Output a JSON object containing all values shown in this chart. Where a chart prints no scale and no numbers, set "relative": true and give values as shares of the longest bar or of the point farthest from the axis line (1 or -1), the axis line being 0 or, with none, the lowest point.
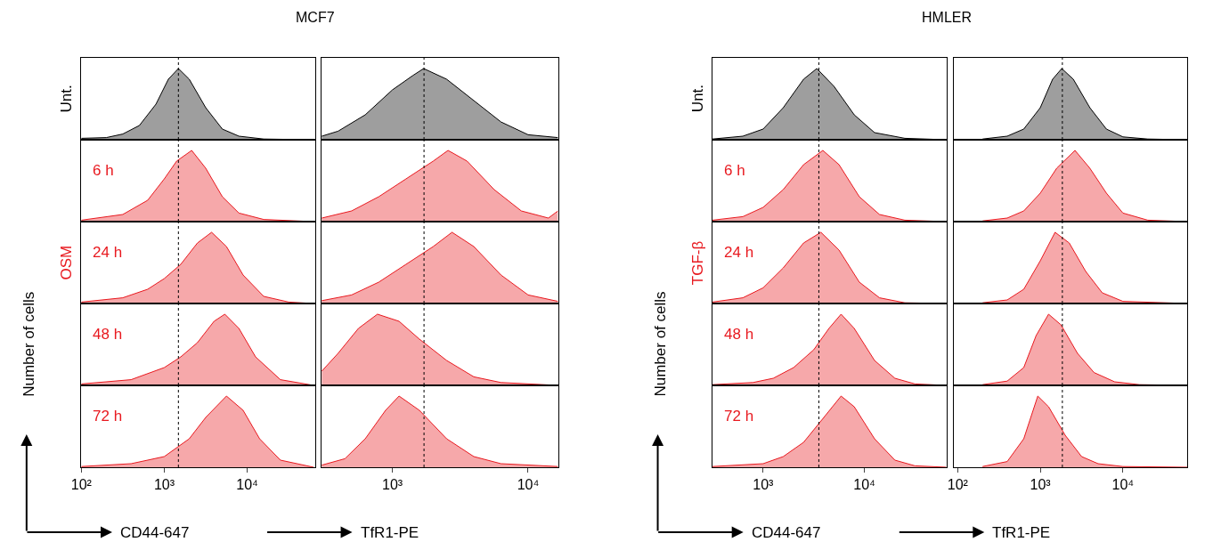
{
  "chart_data": [
    {
      "type": "area",
      "relative": true,
      "log": "x",
      "title": "MCF7",
      "annotations": [
        "Unt."
      ],
      "xlim": [
        100,
        66000
      ],
      "tick_labels": false,
      "ref_lines": [
        {
          "axis": "x",
          "value": 1480,
          "color": "#000000",
          "line_style": "dotted"
        }
      ],
      "x": [
        100,
        200,
        316,
        501,
        794,
        1120,
        1480,
        2000,
        3160,
        5010,
        7940,
        15800,
        63100
      ],
      "series": [
        {
          "color": "#000000",
          "values": [
            0.02,
            0.03,
            0.08,
            0.2,
            0.5,
            0.85,
            1,
            0.85,
            0.45,
            0.15,
            0.05,
            0.01,
            0
          ]
        }
      ]
    },
    {
      "type": "area",
      "relative": true,
      "log": "x",
      "xlim": [
        100,
        66000
      ],
      "tick_labels": false,
      "ref_lines": [
        {
          "axis": "x",
          "value": 1480,
          "color": "#000000",
          "line_style": "dotted"
        }
      ],
      "x": [
        100,
        316,
        631,
        1000,
        1410,
        2140,
        3160,
        5010,
        7940,
        15800,
        63100
      ],
      "series": [
        {
          "name": "6 h",
          "color": "#e8191f",
          "values": [
            0.02,
            0.1,
            0.3,
            0.6,
            0.85,
            1,
            0.75,
            0.35,
            0.12,
            0.03,
            0
          ]
        }
      ]
    },
    {
      "type": "area",
      "relative": true,
      "log": "x",
      "annotations": [
        "OSM"
      ],
      "xlim": [
        100,
        66000
      ],
      "tick_labels": false,
      "ref_lines": [
        {
          "axis": "x",
          "value": 1480,
          "color": "#000000",
          "line_style": "dotted"
        }
      ],
      "x": [
        100,
        316,
        631,
        1000,
        1580,
        2510,
        3720,
        5620,
        8910,
        15800,
        31600,
        63100
      ],
      "series": [
        {
          "name": "24 h",
          "color": "#e8191f",
          "values": [
            0.02,
            0.08,
            0.2,
            0.35,
            0.55,
            0.85,
            1,
            0.8,
            0.4,
            0.1,
            0.02,
            0
          ]
        }
      ]
    },
    {
      "type": "area",
      "relative": true,
      "log": "x",
      "ylabel": "Number of cells",
      "xlim": [
        100,
        66000
      ],
      "tick_labels": false,
      "ref_lines": [
        {
          "axis": "x",
          "value": 1480,
          "color": "#000000",
          "line_style": "dotted"
        }
      ],
      "x": [
        100,
        398,
        1000,
        1580,
        2510,
        3980,
        5370,
        7940,
        12600,
        25100,
        63100
      ],
      "series": [
        {
          "name": "48 h",
          "color": "#e8191f",
          "values": [
            0.02,
            0.08,
            0.25,
            0.4,
            0.6,
            0.9,
            1,
            0.8,
            0.4,
            0.08,
            0
          ]
        }
      ]
    },
    {
      "type": "area",
      "relative": true,
      "log": "x",
      "xlabel": "CD44-647",
      "xlim": [
        100,
        66000
      ],
      "xticks": [
        {
          "value": 100,
          "label": "10²"
        },
        {
          "value": 1000,
          "label": "10³"
        },
        {
          "value": 10000,
          "label": "10⁴"
        }
      ],
      "tick_labels": "x",
      "ref_lines": [
        {
          "axis": "x",
          "value": 1480,
          "color": "#000000",
          "line_style": "dotted"
        }
      ],
      "x": [
        100,
        398,
        1000,
        2000,
        3160,
        5620,
        8910,
        14100,
        25100,
        63100
      ],
      "series": [
        {
          "name": "72 h",
          "color": "#e8191f",
          "values": [
            0.01,
            0.05,
            0.15,
            0.4,
            0.7,
            1,
            0.8,
            0.4,
            0.1,
            0
          ]
        }
      ]
    },
    {
      "type": "area",
      "relative": true,
      "log": "x",
      "xlim": [
        300,
        16600
      ],
      "tick_labels": false,
      "ref_lines": [
        {
          "axis": "x",
          "value": 1710,
          "color": "#000000",
          "line_style": "dotted"
        }
      ],
      "x": [
        302,
        398,
        631,
        1000,
        1410,
        1700,
        2510,
        3980,
        6310,
        10000,
        16600
      ],
      "series": [
        {
          "color": "#000000",
          "values": [
            0.05,
            0.12,
            0.35,
            0.7,
            0.9,
            1,
            0.85,
            0.55,
            0.25,
            0.07,
            0.03
          ]
        }
      ]
    },
    {
      "type": "area",
      "relative": true,
      "log": "x",
      "xlim": [
        300,
        16600
      ],
      "tick_labels": false,
      "ref_lines": [
        {
          "axis": "x",
          "value": 1710,
          "color": "#000000",
          "line_style": "dotted"
        }
      ],
      "x": [
        302,
        501,
        794,
        1260,
        2000,
        2570,
        3550,
        5620,
        8910,
        14100,
        16600
      ],
      "series": [
        {
          "color": "#e8191f",
          "values": [
            0.05,
            0.15,
            0.35,
            0.6,
            0.85,
            1,
            0.85,
            0.45,
            0.15,
            0.05,
            0.15
          ]
        }
      ]
    },
    {
      "type": "area",
      "relative": true,
      "log": "x",
      "xlim": [
        300,
        16600
      ],
      "tick_labels": false,
      "ref_lines": [
        {
          "axis": "x",
          "value": 1710,
          "color": "#000000",
          "line_style": "dotted"
        }
      ],
      "x": [
        302,
        501,
        794,
        1260,
        2000,
        2750,
        3980,
        6310,
        10000,
        16600
      ],
      "series": [
        {
          "color": "#e8191f",
          "values": [
            0.04,
            0.12,
            0.3,
            0.55,
            0.8,
            1,
            0.8,
            0.4,
            0.12,
            0.03
          ]
        }
      ]
    },
    {
      "type": "area",
      "relative": true,
      "log": "x",
      "xlim": [
        300,
        16600
      ],
      "tick_labels": false,
      "ref_lines": [
        {
          "axis": "x",
          "value": 1710,
          "color": "#000000",
          "line_style": "dotted"
        }
      ],
      "x": [
        302,
        398,
        562,
        776,
        1120,
        1580,
        2510,
        3980,
        6310,
        16600
      ],
      "series": [
        {
          "color": "#e8191f",
          "values": [
            0.2,
            0.45,
            0.8,
            1,
            0.9,
            0.65,
            0.35,
            0.12,
            0.04,
            0
          ]
        }
      ]
    },
    {
      "type": "area",
      "relative": true,
      "log": "x",
      "xlabel": "TfR1-PE",
      "xlim": [
        300,
        16600
      ],
      "xticks": [
        {
          "value": 1000,
          "label": "10³"
        },
        {
          "value": 10000,
          "label": "10⁴"
        }
      ],
      "tick_labels": "x",
      "ref_lines": [
        {
          "axis": "x",
          "value": 1710,
          "color": "#000000",
          "line_style": "dotted"
        }
      ],
      "x": [
        302,
        447,
        631,
        891,
        1120,
        1580,
        2510,
        3980,
        6310,
        16600
      ],
      "series": [
        {
          "color": "#e8191f",
          "values": [
            0.03,
            0.12,
            0.4,
            0.8,
            1,
            0.8,
            0.4,
            0.15,
            0.05,
            0.01
          ]
        }
      ]
    },
    {
      "type": "area",
      "relative": true,
      "log": "x",
      "title": "HMLER",
      "annotations": [
        "Unt."
      ],
      "xlim": [
        316,
        64600
      ],
      "tick_labels": false,
      "ref_lines": [
        {
          "axis": "x",
          "value": 3550,
          "color": "#000000",
          "line_style": "dotted"
        }
      ],
      "x": [
        316,
        631,
        1000,
        1580,
        2510,
        3390,
        5010,
        7940,
        12600,
        25100,
        64600
      ],
      "series": [
        {
          "color": "#000000",
          "values": [
            0.01,
            0.05,
            0.15,
            0.45,
            0.85,
            1,
            0.75,
            0.35,
            0.1,
            0.02,
            0
          ]
        }
      ]
    },
    {
      "type": "area",
      "relative": true,
      "log": "x",
      "xlim": [
        316,
        64600
      ],
      "tick_labels": false,
      "ref_lines": [
        {
          "axis": "x",
          "value": 3550,
          "color": "#000000",
          "line_style": "dotted"
        }
      ],
      "x": [
        316,
        631,
        1000,
        1580,
        2510,
        3890,
        5620,
        8910,
        14100,
        25100,
        64600
      ],
      "series": [
        {
          "name": "6 h",
          "color": "#e8191f",
          "values": [
            0.02,
            0.07,
            0.2,
            0.45,
            0.8,
            1,
            0.8,
            0.35,
            0.1,
            0.02,
            0
          ]
        }
      ]
    },
    {
      "type": "area",
      "relative": true,
      "log": "x",
      "annotations": [
        "TGF-β"
      ],
      "xlim": [
        316,
        64600
      ],
      "tick_labels": false,
      "ref_lines": [
        {
          "axis": "x",
          "value": 3550,
          "color": "#000000",
          "line_style": "dotted"
        }
      ],
      "x": [
        316,
        631,
        1000,
        1580,
        2510,
        3720,
        5620,
        8910,
        14100,
        25100,
        64600
      ],
      "series": [
        {
          "name": "24 h",
          "color": "#e8191f",
          "values": [
            0.02,
            0.08,
            0.22,
            0.5,
            0.85,
            1,
            0.75,
            0.3,
            0.08,
            0.01,
            0
          ]
        }
      ]
    },
    {
      "type": "area",
      "relative": true,
      "log": "x",
      "ylabel": "Number of cells",
      "xlim": [
        316,
        64600
      ],
      "tick_labels": false,
      "ref_lines": [
        {
          "axis": "x",
          "value": 3550,
          "color": "#000000",
          "line_style": "dotted"
        }
      ],
      "x": [
        316,
        794,
        1260,
        2000,
        3160,
        4470,
        5890,
        7940,
        12600,
        20000,
        31600,
        64600
      ],
      "series": [
        {
          "name": "48 h",
          "color": "#e8191f",
          "values": [
            0.01,
            0.04,
            0.1,
            0.25,
            0.5,
            0.8,
            1,
            0.8,
            0.35,
            0.1,
            0.02,
            0
          ]
        }
      ]
    },
    {
      "type": "area",
      "relative": true,
      "log": "x",
      "xlabel": "CD44-647",
      "xlim": [
        316,
        64600
      ],
      "xticks": [
        {
          "value": 1000,
          "label": "10³"
        },
        {
          "value": 10000,
          "label": "10⁴"
        }
      ],
      "tick_labels": "x",
      "ref_lines": [
        {
          "axis": "x",
          "value": 3550,
          "color": "#000000",
          "line_style": "dotted"
        }
      ],
      "x": [
        316,
        1000,
        1580,
        2510,
        3980,
        5890,
        7940,
        12600,
        20000,
        31600,
        64600
      ],
      "series": [
        {
          "name": "72 h",
          "color": "#e8191f",
          "values": [
            0.01,
            0.05,
            0.15,
            0.35,
            0.7,
            1,
            0.85,
            0.4,
            0.1,
            0.02,
            0
          ]
        }
      ]
    },
    {
      "type": "area",
      "relative": true,
      "log": "x",
      "xlim": [
        89,
        60300
      ],
      "tick_labels": false,
      "ref_lines": [
        {
          "axis": "x",
          "value": 1850,
          "color": "#000000",
          "line_style": "dotted"
        }
      ],
      "x": [
        200,
        398,
        631,
        1000,
        1410,
        1820,
        2510,
        3980,
        6310,
        10000,
        20000,
        60300
      ],
      "series": [
        {
          "color": "#000000",
          "values": [
            0.01,
            0.05,
            0.15,
            0.45,
            0.85,
            1,
            0.85,
            0.45,
            0.15,
            0.04,
            0.01,
            0
          ]
        }
      ]
    },
    {
      "type": "area",
      "relative": true,
      "log": "x",
      "xlim": [
        89,
        60300
      ],
      "tick_labels": false,
      "ref_lines": [
        {
          "axis": "x",
          "value": 1850,
          "color": "#000000",
          "line_style": "dotted"
        }
      ],
      "x": [
        200,
        398,
        631,
        1000,
        1580,
        2630,
        3980,
        6310,
        10000,
        20000,
        60300
      ],
      "series": [
        {
          "color": "#e8191f",
          "values": [
            0.01,
            0.05,
            0.15,
            0.4,
            0.75,
            1,
            0.75,
            0.4,
            0.12,
            0.02,
            0
          ]
        }
      ]
    },
    {
      "type": "area",
      "relative": true,
      "log": "x",
      "xlim": [
        89,
        60300
      ],
      "tick_labels": false,
      "ref_lines": [
        {
          "axis": "x",
          "value": 1850,
          "color": "#000000",
          "line_style": "dotted"
        }
      ],
      "x": [
        200,
        398,
        631,
        1000,
        1510,
        2240,
        3550,
        5620,
        10000,
        60300
      ],
      "series": [
        {
          "color": "#e8191f",
          "values": [
            0.01,
            0.05,
            0.2,
            0.6,
            1,
            0.85,
            0.45,
            0.15,
            0.03,
            0
          ]
        }
      ]
    },
    {
      "type": "area",
      "relative": true,
      "log": "x",
      "xlim": [
        89,
        60300
      ],
      "tick_labels": false,
      "ref_lines": [
        {
          "axis": "x",
          "value": 1850,
          "color": "#000000",
          "line_style": "dotted"
        }
      ],
      "x": [
        200,
        398,
        631,
        891,
        1260,
        1780,
        2820,
        4470,
        7940,
        15800,
        60300
      ],
      "series": [
        {
          "color": "#e8191f",
          "values": [
            0.01,
            0.06,
            0.25,
            0.7,
            1,
            0.85,
            0.45,
            0.18,
            0.05,
            0.01,
            0
          ]
        }
      ]
    },
    {
      "type": "area",
      "relative": true,
      "log": "x",
      "xlabel": "TfR1-PE",
      "xlim": [
        89,
        60300
      ],
      "xticks": [
        {
          "value": 100,
          "label": "10²"
        },
        {
          "value": 1000,
          "label": "10³"
        },
        {
          "value": 10000,
          "label": "10⁴"
        }
      ],
      "tick_labels": "x",
      "ref_lines": [
        {
          "axis": "x",
          "value": 1850,
          "color": "#000000",
          "line_style": "dotted"
        }
      ],
      "x": [
        200,
        398,
        631,
        933,
        1260,
        2000,
        3160,
        5010,
        10000,
        60300
      ],
      "series": [
        {
          "color": "#e8191f",
          "values": [
            0.01,
            0.08,
            0.4,
            1,
            0.85,
            0.45,
            0.15,
            0.05,
            0.01,
            0
          ]
        }
      ]
    }
  ]
}
